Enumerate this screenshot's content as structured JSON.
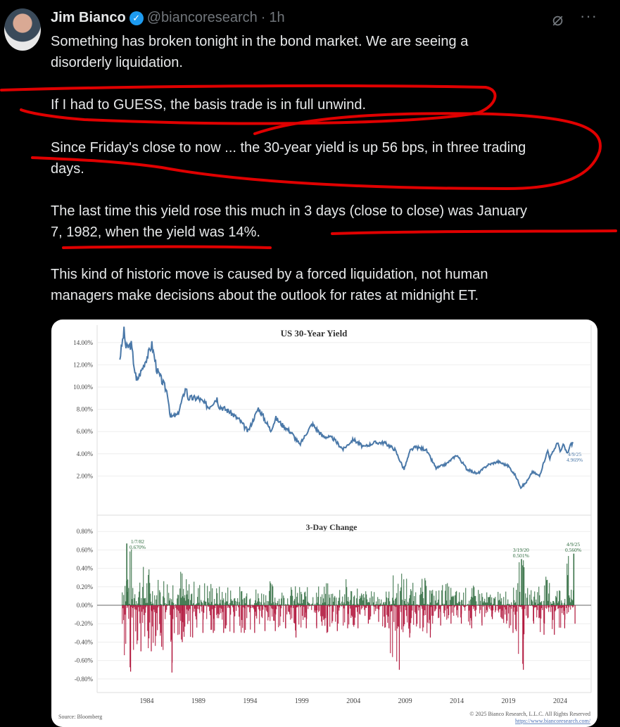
{
  "tweet": {
    "author_name": "Jim Bianco",
    "handle": "@biancoresearch",
    "separator": "·",
    "time": "1h",
    "more_label": "···",
    "lines": [
      "Something has broken tonight in the bond market. We are seeing a",
      "disorderly liquidation.",
      "If I had to GUESS, the basis trade is in full unwind.",
      "Since Friday's close to now ... the 30-year yield is up 56 bps, in three trading",
      "days.",
      "The last time this yield rose this much in 3 days (close to close) was January",
      "7, 1982, when the yield was 14%.",
      "This kind of historic move is caused by a forced liquidation, not human",
      "managers make decisions about the outlook for rates at midnight ET."
    ],
    "annotation_color": "#e00000"
  },
  "chart_data": [
    {
      "type": "line",
      "title": "US 30-Year Yield",
      "ylim": [
        0,
        16
      ],
      "yticks": [
        "2.00%",
        "4.00%",
        "6.00%",
        "8.00%",
        "10.00%",
        "12.00%",
        "14.00%"
      ],
      "ytick_values": [
        2,
        4,
        6,
        8,
        10,
        12,
        14
      ],
      "xlim": [
        1979.2,
        2027.0
      ],
      "xticks": [
        "1984",
        "1989",
        "1994",
        "1999",
        "2004",
        "2009",
        "2014",
        "2019",
        "2024"
      ],
      "color": "#4a78a8",
      "grid": true,
      "series": [
        {
          "x": [
            1981.4,
            1981.8,
            1982.0,
            1982.5,
            1983.0,
            1983.5,
            1984.5,
            1985.0,
            1986.0,
            1986.3,
            1987.0,
            1987.8,
            1988.0,
            1989.0,
            1990.0,
            1990.8,
            1991.0,
            1992.0,
            1993.0,
            1993.8,
            1994.8,
            1995.0,
            1996.0,
            1996.5,
            1997.0,
            1998.0,
            1998.8,
            2000.0,
            2001.0,
            2002.0,
            2003.0,
            2004.0,
            2005.0,
            2006.0,
            2007.0,
            2008.0,
            2008.9,
            2009.5,
            2010.0,
            2011.0,
            2012.0,
            2013.0,
            2014.0,
            2015.0,
            2016.0,
            2017.0,
            2018.0,
            2019.0,
            2019.7,
            2020.2,
            2020.6,
            2021.0,
            2021.3,
            2022.0,
            2022.8,
            2023.0,
            2023.8,
            2024.0,
            2024.3,
            2024.7,
            2025.0,
            2025.27
          ],
          "y": [
            12.6,
            15.0,
            13.5,
            13.8,
            10.5,
            11.5,
            13.8,
            11.5,
            9.5,
            7.3,
            7.5,
            10.0,
            9.0,
            9.0,
            8.2,
            9.0,
            8.3,
            7.8,
            7.0,
            6.0,
            8.1,
            7.8,
            6.1,
            7.2,
            6.7,
            5.9,
            4.8,
            6.7,
            5.6,
            5.4,
            4.4,
            5.3,
            4.6,
            5.0,
            5.0,
            4.4,
            2.6,
            4.3,
            4.6,
            4.4,
            2.7,
            3.1,
            3.9,
            2.6,
            2.2,
            3.0,
            3.3,
            2.9,
            2.0,
            1.0,
            1.3,
            1.8,
            2.4,
            2.0,
            4.3,
            3.6,
            5.1,
            4.1,
            4.8,
            4.0,
            4.8,
            4.97
          ]
        }
      ],
      "annotations": [
        {
          "label": "4/9/25",
          "value": "4.969%"
        }
      ]
    },
    {
      "type": "bar",
      "title": "3-Day Change",
      "ylim": [
        -0.85,
        0.85
      ],
      "yticks": [
        "0.80%",
        "0.60%",
        "0.40%",
        "0.20%",
        "0.00%",
        "-0.20%",
        "-0.40%",
        "-0.60%",
        "-0.80%"
      ],
      "ytick_values": [
        0.8,
        0.6,
        0.4,
        0.2,
        0,
        -0.2,
        -0.4,
        -0.6,
        -0.8
      ],
      "positive_color": "#2e6b3e",
      "negative_color": "#b0143a",
      "grid": true,
      "yearly_envelope": {
        "years": [
          1982,
          1983,
          1984,
          1985,
          1986,
          1987,
          1988,
          1989,
          1990,
          1991,
          1992,
          1993,
          1994,
          1995,
          1996,
          1997,
          1998,
          1999,
          2000,
          2001,
          2002,
          2003,
          2004,
          2005,
          2006,
          2007,
          2008,
          2009,
          2010,
          2011,
          2012,
          2013,
          2014,
          2015,
          2016,
          2017,
          2018,
          2019,
          2020,
          2021,
          2022,
          2023,
          2024,
          2025
        ],
        "max_up": [
          0.67,
          0.45,
          0.46,
          0.35,
          0.38,
          0.45,
          0.3,
          0.28,
          0.3,
          0.22,
          0.25,
          0.22,
          0.3,
          0.22,
          0.28,
          0.2,
          0.22,
          0.22,
          0.2,
          0.25,
          0.2,
          0.3,
          0.25,
          0.18,
          0.16,
          0.18,
          0.35,
          0.38,
          0.25,
          0.3,
          0.2,
          0.25,
          0.18,
          0.2,
          0.22,
          0.15,
          0.15,
          0.2,
          0.501,
          0.2,
          0.3,
          0.32,
          0.25,
          0.56
        ],
        "max_down": [
          -0.72,
          -0.5,
          -0.5,
          -0.45,
          -0.73,
          -0.4,
          -0.35,
          -0.3,
          -0.3,
          -0.3,
          -0.3,
          -0.3,
          -0.3,
          -0.28,
          -0.28,
          -0.25,
          -0.35,
          -0.25,
          -0.25,
          -0.3,
          -0.28,
          -0.25,
          -0.25,
          -0.2,
          -0.18,
          -0.25,
          -0.7,
          -0.35,
          -0.25,
          -0.35,
          -0.22,
          -0.2,
          -0.2,
          -0.25,
          -0.22,
          -0.15,
          -0.15,
          -0.3,
          -0.7,
          -0.2,
          -0.32,
          -0.32,
          -0.25,
          -0.2
        ]
      },
      "annotations": [
        {
          "label": "1/7/82",
          "value": "0.670%"
        },
        {
          "label": "3/19/20",
          "value": "0.501%"
        },
        {
          "label": "4/9/25",
          "value": "0.560%"
        }
      ]
    }
  ],
  "chart_footer": {
    "source": "Source: Bloomberg",
    "copyright": "© 2025 Bianco Research, L.L.C. All Rights Reserved",
    "url": "https://www.biancoresearch.com/"
  }
}
